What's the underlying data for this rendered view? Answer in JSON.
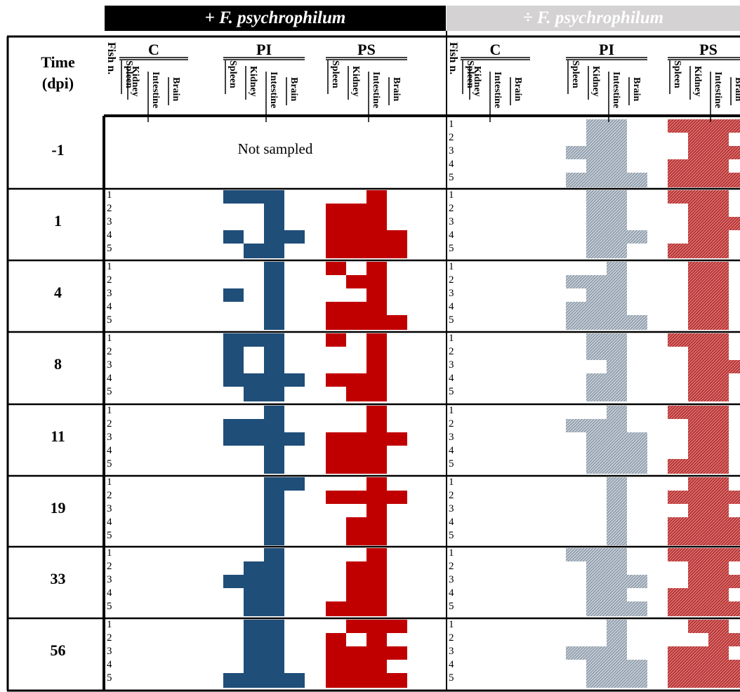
{
  "headers": {
    "positive": "+ F. psychrophilum",
    "negative": "÷ F. psychrophilum",
    "time_line1": "Time",
    "time_line2": "(dpi)",
    "fish_label": "Fish n.",
    "groups": [
      "C",
      "PI",
      "PS"
    ],
    "organs": [
      "Spleen",
      "Kidney",
      "Intestine",
      "Brain"
    ]
  },
  "not_sampled": "Not sampled",
  "fish_numbers": [
    "1",
    "2",
    "3",
    "4",
    "5"
  ],
  "colors": {
    "pi_positive": "#1f4e79",
    "ps_positive": "#c00000",
    "pi_negative": "#a9b4c0",
    "ps_negative": "#c84a4a"
  },
  "timepoints": [
    {
      "label": "-1",
      "sampled_positive": false
    },
    {
      "label": "1",
      "sampled_positive": true
    },
    {
      "label": "4",
      "sampled_positive": true
    },
    {
      "label": "8",
      "sampled_positive": true
    },
    {
      "label": "11",
      "sampled_positive": true
    },
    {
      "label": "19",
      "sampled_positive": true
    },
    {
      "label": "33",
      "sampled_positive": true
    },
    {
      "label": "56",
      "sampled_positive": true
    }
  ],
  "matrices": {
    "positive_PI": [
      null,
      [
        "1110",
        "0010",
        "0010",
        "1011",
        "0110"
      ],
      [
        "0010",
        "0010",
        "1010",
        "0010",
        "0010"
      ],
      [
        "1110",
        "1010",
        "1010",
        "1111",
        "0110"
      ],
      [
        "0010",
        "1110",
        "1111",
        "0010",
        "0010"
      ],
      [
        "0011",
        "0010",
        "0010",
        "0010",
        "0010"
      ],
      [
        "0010",
        "0110",
        "1110",
        "0110",
        "0110"
      ],
      [
        "0110",
        "0110",
        "0110",
        "0110",
        "1111"
      ]
    ],
    "positive_PS": [
      null,
      [
        "0010",
        "1110",
        "1110",
        "1111",
        "1111"
      ],
      [
        "1010",
        "0110",
        "0010",
        "1110",
        "1111"
      ],
      [
        "1010",
        "0010",
        "0010",
        "1110",
        "0110"
      ],
      [
        "0010",
        "0010",
        "1111",
        "1110",
        "1110"
      ],
      [
        "0010",
        "1111",
        "0010",
        "0110",
        "0110"
      ],
      [
        "0010",
        "0110",
        "0110",
        "0110",
        "1110"
      ],
      [
        "0111",
        "1010",
        "1111",
        "1110",
        "1111"
      ]
    ],
    "negative_PI": [
      [
        "0110",
        "0110",
        "1110",
        "0110",
        "1111"
      ],
      [
        "0110",
        "0110",
        "0110",
        "0111",
        "0110"
      ],
      [
        "0010",
        "1110",
        "0110",
        "1110",
        "1111"
      ],
      [
        "0110",
        "0110",
        "0010",
        "0110",
        "0110"
      ],
      [
        "0010",
        "1110",
        "0111",
        "0111",
        "0111"
      ],
      [
        "0010",
        "0010",
        "0010",
        "0010",
        "0010"
      ],
      [
        "1110",
        "0110",
        "0111",
        "0110",
        "0111"
      ],
      [
        "0010",
        "0010",
        "1110",
        "0111",
        "0111"
      ]
    ],
    "negative_PS": [
      [
        "1111",
        "0110",
        "0111",
        "1110",
        "1111"
      ],
      [
        "1110",
        "0110",
        "0111",
        "0110",
        "1110"
      ],
      [
        "0110",
        "0110",
        "0110",
        "0110",
        "0110"
      ],
      [
        "1110",
        "0110",
        "0111",
        "0110",
        "0110"
      ],
      [
        "1110",
        "0110",
        "0110",
        "0110",
        "1110"
      ],
      [
        "0110",
        "1111",
        "0110",
        "1111",
        "1111"
      ],
      [
        "1111",
        "0110",
        "0111",
        "1110",
        "1111"
      ],
      [
        "0110",
        "0011",
        "1110",
        "1111",
        "1111"
      ]
    ]
  }
}
